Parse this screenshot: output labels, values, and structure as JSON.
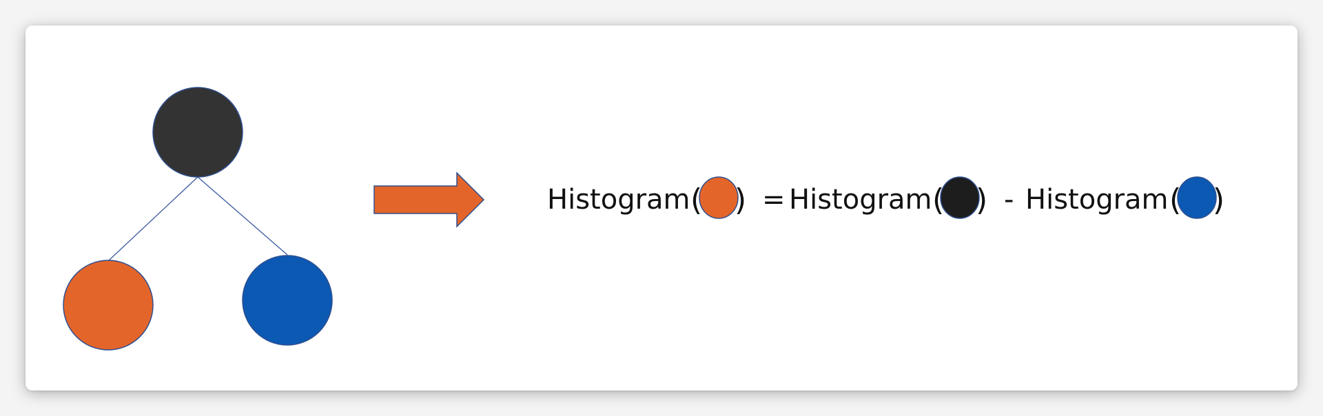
{
  "diagram": {
    "tree": {
      "root_node": {
        "color": "#333333",
        "border": "#2f4f8f"
      },
      "left_child": {
        "color": "#e4652a",
        "border": "#2f4f8f"
      },
      "right_child": {
        "color": "#0b59b3",
        "border": "#2f4f8f"
      },
      "edge_color": "#3a5aa0"
    },
    "arrow": {
      "color": "#e4652a",
      "border": "#2f4f8f"
    },
    "equation": {
      "term1_label": "Histogram",
      "term1_color": "#e4652a",
      "equals_sign": "=",
      "term2_label": "Histogram",
      "term2_color": "#1d1d1d",
      "minus_sign": "-",
      "term3_label": "Histogram",
      "term3_color": "#0b59b3",
      "open_paren": "(",
      "close_paren": ")"
    }
  }
}
